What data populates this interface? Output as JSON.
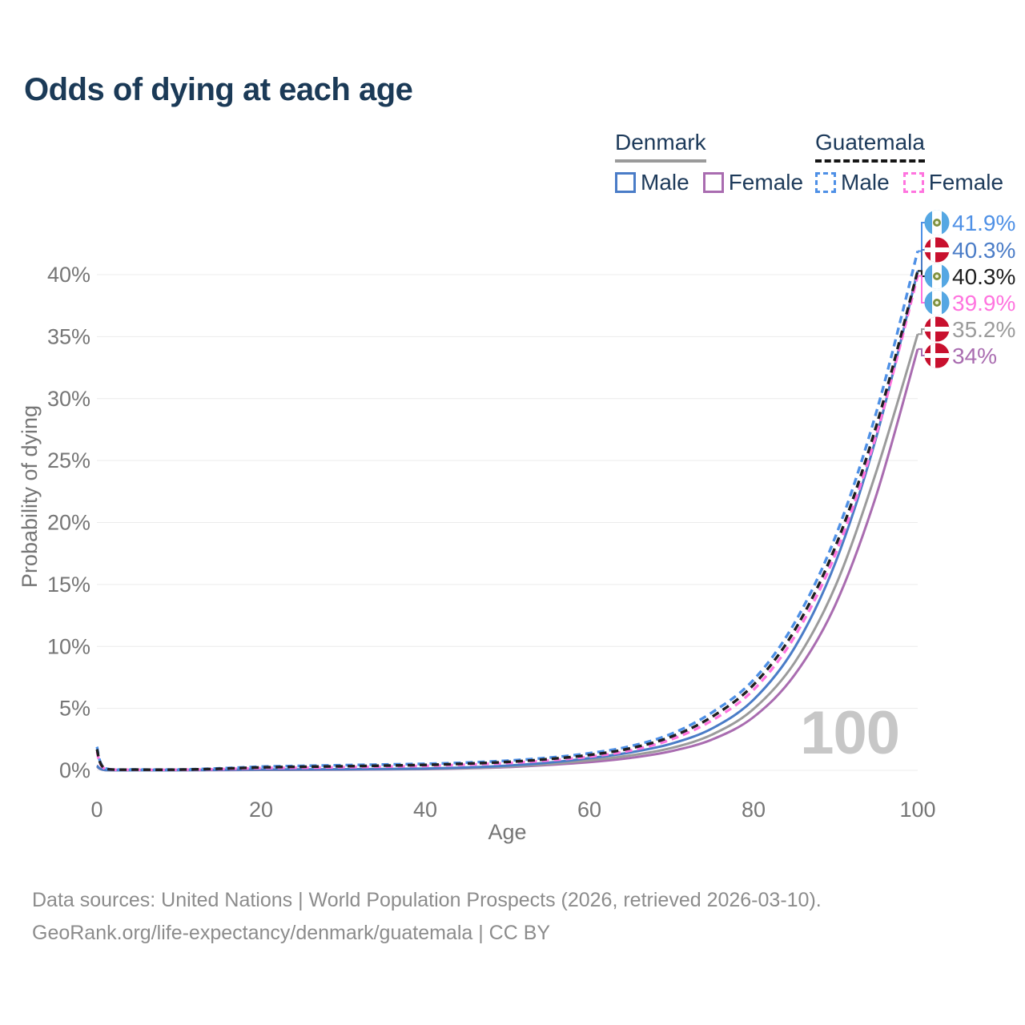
{
  "title": "Odds of dying at each age",
  "watermark": "100",
  "legend": {
    "groups": [
      {
        "title": "Denmark",
        "style": "solid",
        "underline_color": "#9a9a9a",
        "items": [
          {
            "label": "Male",
            "color": "#4a7cc7"
          },
          {
            "label": "Female",
            "color": "#a96cb0"
          }
        ]
      },
      {
        "title": "Guatemala",
        "style": "dashed",
        "underline_color": "#151515",
        "items": [
          {
            "label": "Male",
            "color": "#4e90e6"
          },
          {
            "label": "Female",
            "color": "#ff74df"
          }
        ]
      }
    ]
  },
  "footer": {
    "line1": "Data sources: United Nations | World Population Prospects (2026, retrieved 2026-03-10).",
    "line2": "GeoRank.org/life-expectancy/denmark/guatemala | CC BY"
  },
  "chart_data": {
    "type": "line",
    "title": "Odds of dying at each age",
    "xlabel": "Age",
    "ylabel": "Probability of dying",
    "xlim": [
      0,
      100
    ],
    "ylim": [
      0,
      43
    ],
    "x_ticks": [
      0,
      20,
      40,
      60,
      80,
      100
    ],
    "y_ticks": [
      0,
      5,
      10,
      15,
      20,
      25,
      30,
      35,
      40
    ],
    "y_tick_suffix": "%",
    "grid": "horizontal-only",
    "legend_position": "top-right",
    "ages": [
      0,
      1,
      5,
      10,
      15,
      20,
      25,
      30,
      35,
      40,
      45,
      50,
      55,
      60,
      65,
      70,
      75,
      80,
      85,
      90,
      95,
      100
    ],
    "series": [
      {
        "id": "guatemala-male",
        "name": "Guatemala Male",
        "country": "Guatemala",
        "sex": "Male",
        "dashed": true,
        "color": "#4e90e6",
        "label_color": "#4e90e6",
        "flag": "guatemala",
        "end_label": "41.9%",
        "values": [
          1.9,
          0.16,
          0.07,
          0.07,
          0.16,
          0.3,
          0.36,
          0.42,
          0.47,
          0.53,
          0.63,
          0.78,
          1.02,
          1.38,
          1.95,
          2.95,
          4.7,
          7.3,
          11.9,
          18.9,
          29.0,
          41.9
        ]
      },
      {
        "id": "denmark-male",
        "name": "Denmark Male",
        "country": "Denmark",
        "sex": "Male",
        "dashed": false,
        "color": "#4a7cc7",
        "label_color": "#4a7cc7",
        "flag": "denmark",
        "end_label": "40.3%",
        "values": [
          0.38,
          0.03,
          0.01,
          0.01,
          0.04,
          0.07,
          0.08,
          0.09,
          0.11,
          0.15,
          0.23,
          0.38,
          0.62,
          0.98,
          1.45,
          2.15,
          3.4,
          5.7,
          9.9,
          16.8,
          27.0,
          40.3
        ]
      },
      {
        "id": "guatemala-all",
        "name": "Guatemala Both sexes",
        "country": "Guatemala",
        "sex": "Both",
        "dashed": true,
        "color": "#1f1f1f",
        "label_color": "#1f1f1f",
        "flag": "guatemala",
        "end_label": "40.3%",
        "values": [
          1.7,
          0.14,
          0.06,
          0.06,
          0.13,
          0.24,
          0.29,
          0.33,
          0.38,
          0.44,
          0.54,
          0.68,
          0.91,
          1.24,
          1.78,
          2.72,
          4.35,
          6.9,
          11.3,
          18.1,
          27.9,
          40.3
        ]
      },
      {
        "id": "guatemala-female",
        "name": "Guatemala Female",
        "country": "Guatemala",
        "sex": "Female",
        "dashed": true,
        "color": "#ff74df",
        "label_color": "#ff74df",
        "flag": "guatemala",
        "end_label": "39.9%",
        "values": [
          1.5,
          0.12,
          0.05,
          0.05,
          0.1,
          0.18,
          0.21,
          0.25,
          0.3,
          0.36,
          0.46,
          0.59,
          0.8,
          1.1,
          1.6,
          2.5,
          4.05,
          6.5,
          10.8,
          17.5,
          27.2,
          39.9
        ]
      },
      {
        "id": "denmark-all",
        "name": "Denmark Both sexes",
        "country": "Denmark",
        "sex": "Both",
        "dashed": false,
        "color": "#9b9b9b",
        "label_color": "#9b9b9b",
        "flag": "denmark",
        "end_label": "35.2%",
        "values": [
          0.34,
          0.02,
          0.01,
          0.01,
          0.03,
          0.05,
          0.06,
          0.07,
          0.09,
          0.12,
          0.19,
          0.31,
          0.51,
          0.81,
          1.2,
          1.8,
          2.9,
          4.95,
          8.7,
          14.9,
          24.2,
          35.2
        ]
      },
      {
        "id": "denmark-female",
        "name": "Denmark Female",
        "country": "Denmark",
        "sex": "Female",
        "dashed": false,
        "color": "#a96cb0",
        "label_color": "#a96cb0",
        "flag": "denmark",
        "end_label": "34%",
        "values": [
          0.3,
          0.02,
          0.01,
          0.01,
          0.02,
          0.03,
          0.04,
          0.05,
          0.07,
          0.1,
          0.16,
          0.26,
          0.43,
          0.66,
          1.0,
          1.55,
          2.5,
          4.3,
          7.7,
          13.4,
          22.3,
          34.0
        ]
      }
    ],
    "flag_colors": {
      "denmark_red": "#c8102e",
      "guatemala_blue": "#55a7e3",
      "guatemala_emblem": "#7f9140"
    }
  }
}
